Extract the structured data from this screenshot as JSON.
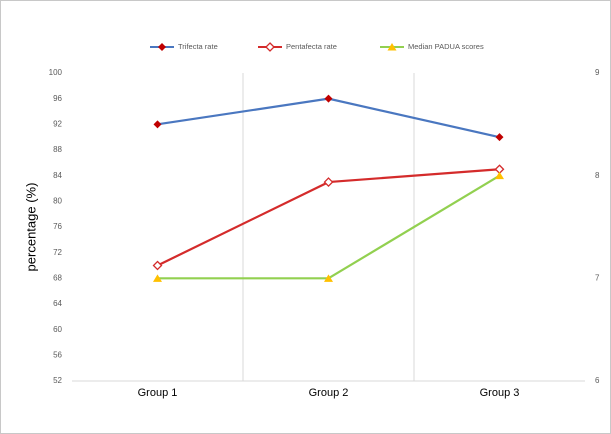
{
  "chart_data": {
    "type": "line",
    "categories": [
      "Group 1",
      "Group 2",
      "Group 3"
    ],
    "y_label": "percentage (%)",
    "series": [
      {
        "name": "Trifecta rate",
        "color": "#4a77c0",
        "marker_color": "#c00000",
        "marker": "diamond",
        "values": [
          92,
          96,
          90
        ]
      },
      {
        "name": "Pentafecta rate",
        "color": "#d42b2b",
        "marker_color": "#ffffff",
        "marker": "open-diamond",
        "values": [
          70,
          83,
          85
        ]
      },
      {
        "name": "Median PADUA scores",
        "color": "#92d050",
        "marker_color": "#ffc000",
        "marker": "triangle",
        "axis": "y2",
        "values": [
          7,
          7,
          8
        ]
      }
    ],
    "ylim": [
      52,
      100
    ],
    "yticks": [
      52,
      56,
      60,
      64,
      68,
      72,
      76,
      80,
      84,
      88,
      92,
      96,
      100
    ],
    "y2lim": [
      6,
      9
    ],
    "y2ticks": [
      6,
      7,
      8,
      9
    ],
    "grid": true,
    "legend": "top"
  }
}
